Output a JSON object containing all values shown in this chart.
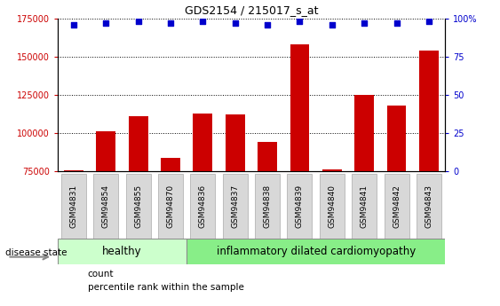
{
  "title": "GDS2154 / 215017_s_at",
  "categories": [
    "GSM94831",
    "GSM94854",
    "GSM94855",
    "GSM94870",
    "GSM94836",
    "GSM94837",
    "GSM94838",
    "GSM94839",
    "GSM94840",
    "GSM94841",
    "GSM94842",
    "GSM94843"
  ],
  "bar_values": [
    75500,
    101000,
    111000,
    84000,
    113000,
    112000,
    94000,
    158000,
    76000,
    125000,
    118000,
    154000
  ],
  "percentile_values": [
    96,
    97,
    98,
    97,
    98,
    97,
    96,
    98,
    96,
    97,
    97,
    98
  ],
  "ylim_left": [
    75000,
    175000
  ],
  "ylim_right": [
    0,
    100
  ],
  "yticks_left": [
    75000,
    100000,
    125000,
    150000,
    175000
  ],
  "yticks_right": [
    0,
    25,
    50,
    75,
    100
  ],
  "bar_color": "#cc0000",
  "dot_color": "#0000cc",
  "n_healthy": 4,
  "n_idc": 8,
  "healthy_label": "healthy",
  "idc_label": "inflammatory dilated cardiomyopathy",
  "disease_state_label": "disease state",
  "legend_count": "count",
  "legend_percentile": "percentile rank within the sample",
  "healthy_color": "#ccffcc",
  "idc_color": "#88ee88",
  "label_bg_color": "#d8d8d8",
  "right_axis_color": "#0000cc",
  "left_axis_color": "#cc0000",
  "bg_color": "#ffffff"
}
